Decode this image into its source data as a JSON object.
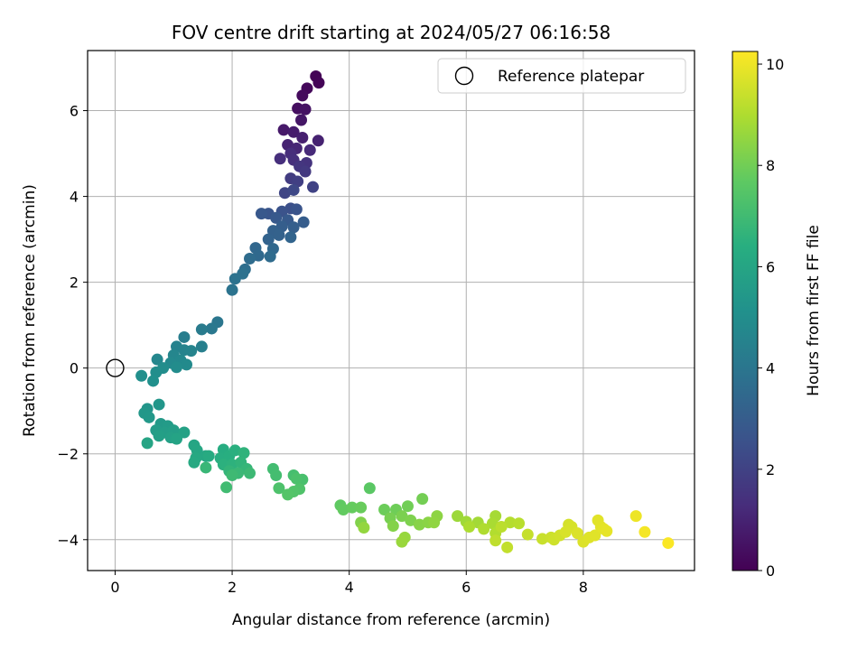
{
  "chart_data": {
    "type": "scatter",
    "title": "FOV centre drift starting at 2024/05/27 06:16:58",
    "xlabel": "Angular distance from reference (arcmin)",
    "ylabel": "Rotation from reference (arcmin)",
    "xlim": [
      -0.47,
      9.9
    ],
    "ylim": [
      -4.72,
      7.4
    ],
    "xticks": [
      0,
      2,
      4,
      6,
      8
    ],
    "yticks": [
      -4,
      -2,
      0,
      2,
      4,
      6
    ],
    "grid": true,
    "legend": {
      "placement": "top-right",
      "entries": [
        "Reference platepar"
      ]
    },
    "reference_point": {
      "x": 0,
      "y": 0,
      "label": "Reference platepar"
    },
    "colorbar": {
      "label": "Hours from first FF file",
      "range": [
        0,
        10.25
      ],
      "ticks": [
        0,
        2,
        4,
        6,
        8,
        10
      ],
      "colormap": "viridis"
    },
    "point_fields": [
      "x",
      "y",
      "hours"
    ],
    "points": [
      [
        3.43,
        6.8,
        0.05
      ],
      [
        3.48,
        6.65,
        0.1
      ],
      [
        3.28,
        6.52,
        0.2
      ],
      [
        3.2,
        6.35,
        0.3
      ],
      [
        3.12,
        6.05,
        0.4
      ],
      [
        3.25,
        6.03,
        0.5
      ],
      [
        3.18,
        5.78,
        0.6
      ],
      [
        2.88,
        5.55,
        0.7
      ],
      [
        3.05,
        5.5,
        0.8
      ],
      [
        3.2,
        5.37,
        0.9
      ],
      [
        3.47,
        5.3,
        0.95
      ],
      [
        2.95,
        5.2,
        1.0
      ],
      [
        3.1,
        5.12,
        1.1
      ],
      [
        3.33,
        5.08,
        1.2
      ],
      [
        3.0,
        5.0,
        1.3
      ],
      [
        2.82,
        4.88,
        1.35
      ],
      [
        3.05,
        4.85,
        1.4
      ],
      [
        3.27,
        4.78,
        1.5
      ],
      [
        3.15,
        4.7,
        1.6
      ],
      [
        3.25,
        4.58,
        1.7
      ],
      [
        3.0,
        4.42,
        1.8
      ],
      [
        3.12,
        4.35,
        1.9
      ],
      [
        3.38,
        4.22,
        2.0
      ],
      [
        2.9,
        4.08,
        2.1
      ],
      [
        3.05,
        4.15,
        2.2
      ],
      [
        3.0,
        3.72,
        2.5
      ],
      [
        2.85,
        3.65,
        2.6
      ],
      [
        3.1,
        3.7,
        2.65
      ],
      [
        2.62,
        3.6,
        2.7
      ],
      [
        2.5,
        3.6,
        2.8
      ],
      [
        2.75,
        3.5,
        2.85
      ],
      [
        2.95,
        3.45,
        2.9
      ],
      [
        3.22,
        3.4,
        3.0
      ],
      [
        2.85,
        3.3,
        3.05
      ],
      [
        3.05,
        3.28,
        3.1
      ],
      [
        2.7,
        3.2,
        3.15
      ],
      [
        2.8,
        3.1,
        3.2
      ],
      [
        2.62,
        3.0,
        3.25
      ],
      [
        3.0,
        3.05,
        3.3
      ],
      [
        2.4,
        2.8,
        3.4
      ],
      [
        2.7,
        2.78,
        3.45
      ],
      [
        2.45,
        2.62,
        3.5
      ],
      [
        2.65,
        2.6,
        3.55
      ],
      [
        2.3,
        2.55,
        3.6
      ],
      [
        2.22,
        2.3,
        3.7
      ],
      [
        2.18,
        2.2,
        3.8
      ],
      [
        2.05,
        2.08,
        3.85
      ],
      [
        2.0,
        1.82,
        3.9
      ],
      [
        1.75,
        1.07,
        4.0
      ],
      [
        1.65,
        0.92,
        4.1
      ],
      [
        1.48,
        0.9,
        4.2
      ],
      [
        1.18,
        0.72,
        4.3
      ],
      [
        1.48,
        0.5,
        4.4
      ],
      [
        1.05,
        0.5,
        4.5
      ],
      [
        1.18,
        0.42,
        4.55
      ],
      [
        1.3,
        0.4,
        4.6
      ],
      [
        1.0,
        0.3,
        4.65
      ],
      [
        0.72,
        0.2,
        4.7
      ],
      [
        1.12,
        0.18,
        4.75
      ],
      [
        0.95,
        0.12,
        4.8
      ],
      [
        1.22,
        0.08,
        4.85
      ],
      [
        1.05,
        0.02,
        4.9
      ],
      [
        0.82,
        0.0,
        4.95
      ],
      [
        0.7,
        -0.1,
        5.0
      ],
      [
        0.45,
        -0.18,
        5.05
      ],
      [
        0.65,
        -0.3,
        5.1
      ],
      [
        0.55,
        -0.95,
        5.3
      ],
      [
        0.75,
        -0.85,
        5.35
      ],
      [
        0.5,
        -1.05,
        5.4
      ],
      [
        0.58,
        -1.15,
        5.45
      ],
      [
        0.78,
        -1.3,
        5.5
      ],
      [
        0.9,
        -1.35,
        5.55
      ],
      [
        0.7,
        -1.45,
        5.6
      ],
      [
        0.85,
        -1.5,
        5.65
      ],
      [
        1.0,
        -1.45,
        5.7
      ],
      [
        0.75,
        -1.58,
        5.75
      ],
      [
        0.95,
        -1.62,
        5.8
      ],
      [
        1.18,
        -1.5,
        5.85
      ],
      [
        1.05,
        -1.65,
        5.9
      ],
      [
        0.55,
        -1.75,
        5.95
      ],
      [
        1.35,
        -1.8,
        6.0
      ],
      [
        1.4,
        -1.92,
        6.05
      ],
      [
        1.55,
        -2.05,
        6.1
      ],
      [
        1.38,
        -2.1,
        6.15
      ],
      [
        1.35,
        -2.2,
        6.2
      ],
      [
        1.6,
        -2.05,
        6.25
      ],
      [
        1.85,
        -1.9,
        6.3
      ],
      [
        1.8,
        -2.1,
        6.35
      ],
      [
        1.95,
        -2.05,
        6.4
      ],
      [
        2.05,
        -1.92,
        6.45
      ],
      [
        1.85,
        -2.25,
        6.5
      ],
      [
        2.0,
        -2.25,
        6.55
      ],
      [
        2.2,
        -1.98,
        6.6
      ],
      [
        2.15,
        -2.2,
        6.65
      ],
      [
        1.95,
        -2.4,
        6.7
      ],
      [
        2.25,
        -2.35,
        6.75
      ],
      [
        1.55,
        -2.32,
        6.8
      ],
      [
        2.1,
        -2.45,
        6.85
      ],
      [
        2.3,
        -2.45,
        6.9
      ],
      [
        2.0,
        -2.5,
        6.95
      ],
      [
        1.9,
        -2.78,
        7.0
      ],
      [
        2.7,
        -2.35,
        7.05
      ],
      [
        2.75,
        -2.5,
        7.1
      ],
      [
        3.05,
        -2.5,
        7.15
      ],
      [
        3.2,
        -2.6,
        7.2
      ],
      [
        3.1,
        -2.58,
        7.25
      ],
      [
        2.8,
        -2.8,
        7.3
      ],
      [
        3.15,
        -2.82,
        7.35
      ],
      [
        3.05,
        -2.88,
        7.4
      ],
      [
        2.95,
        -2.95,
        7.45
      ],
      [
        4.35,
        -2.8,
        7.6
      ],
      [
        3.85,
        -3.2,
        7.7
      ],
      [
        3.9,
        -3.3,
        7.75
      ],
      [
        4.05,
        -3.25,
        7.8
      ],
      [
        4.2,
        -3.25,
        7.85
      ],
      [
        4.6,
        -3.3,
        7.9
      ],
      [
        4.8,
        -3.3,
        7.95
      ],
      [
        5.0,
        -3.22,
        8.0
      ],
      [
        5.25,
        -3.05,
        8.05
      ],
      [
        4.7,
        -3.5,
        8.1
      ],
      [
        4.9,
        -3.45,
        8.15
      ],
      [
        5.05,
        -3.55,
        8.2
      ],
      [
        4.2,
        -3.6,
        8.25
      ],
      [
        4.75,
        -3.68,
        8.3
      ],
      [
        5.2,
        -3.65,
        8.35
      ],
      [
        5.35,
        -3.6,
        8.4
      ],
      [
        5.5,
        -3.45,
        8.45
      ],
      [
        5.45,
        -3.6,
        8.5
      ],
      [
        4.25,
        -3.72,
        8.55
      ],
      [
        4.95,
        -3.95,
        8.6
      ],
      [
        4.9,
        -4.05,
        8.65
      ],
      [
        5.85,
        -3.45,
        8.7
      ],
      [
        6.0,
        -3.58,
        8.75
      ],
      [
        6.2,
        -3.6,
        8.8
      ],
      [
        6.5,
        -3.45,
        8.85
      ],
      [
        6.45,
        -3.62,
        8.9
      ],
      [
        6.05,
        -3.7,
        8.95
      ],
      [
        6.3,
        -3.75,
        9.0
      ],
      [
        6.5,
        -3.85,
        9.05
      ],
      [
        6.75,
        -3.6,
        9.1
      ],
      [
        6.9,
        -3.62,
        9.15
      ],
      [
        6.6,
        -3.7,
        9.2
      ],
      [
        6.5,
        -4.02,
        9.25
      ],
      [
        6.7,
        -4.18,
        9.3
      ],
      [
        7.05,
        -3.88,
        9.35
      ],
      [
        7.3,
        -3.98,
        9.4
      ],
      [
        7.45,
        -3.95,
        9.45
      ],
      [
        7.5,
        -4.0,
        9.5
      ],
      [
        7.6,
        -3.9,
        9.55
      ],
      [
        7.75,
        -3.65,
        9.6
      ],
      [
        7.8,
        -3.7,
        9.62
      ],
      [
        7.7,
        -3.82,
        9.65
      ],
      [
        7.9,
        -3.85,
        9.7
      ],
      [
        8.0,
        -4.05,
        9.72
      ],
      [
        8.1,
        -3.95,
        9.75
      ],
      [
        8.2,
        -3.9,
        9.78
      ],
      [
        8.25,
        -3.55,
        9.8
      ],
      [
        8.3,
        -3.7,
        9.82
      ],
      [
        8.35,
        -3.75,
        9.85
      ],
      [
        8.4,
        -3.8,
        9.88
      ],
      [
        8.9,
        -3.45,
        10.0
      ],
      [
        9.05,
        -3.82,
        10.1
      ],
      [
        9.45,
        -4.08,
        10.2
      ]
    ]
  }
}
